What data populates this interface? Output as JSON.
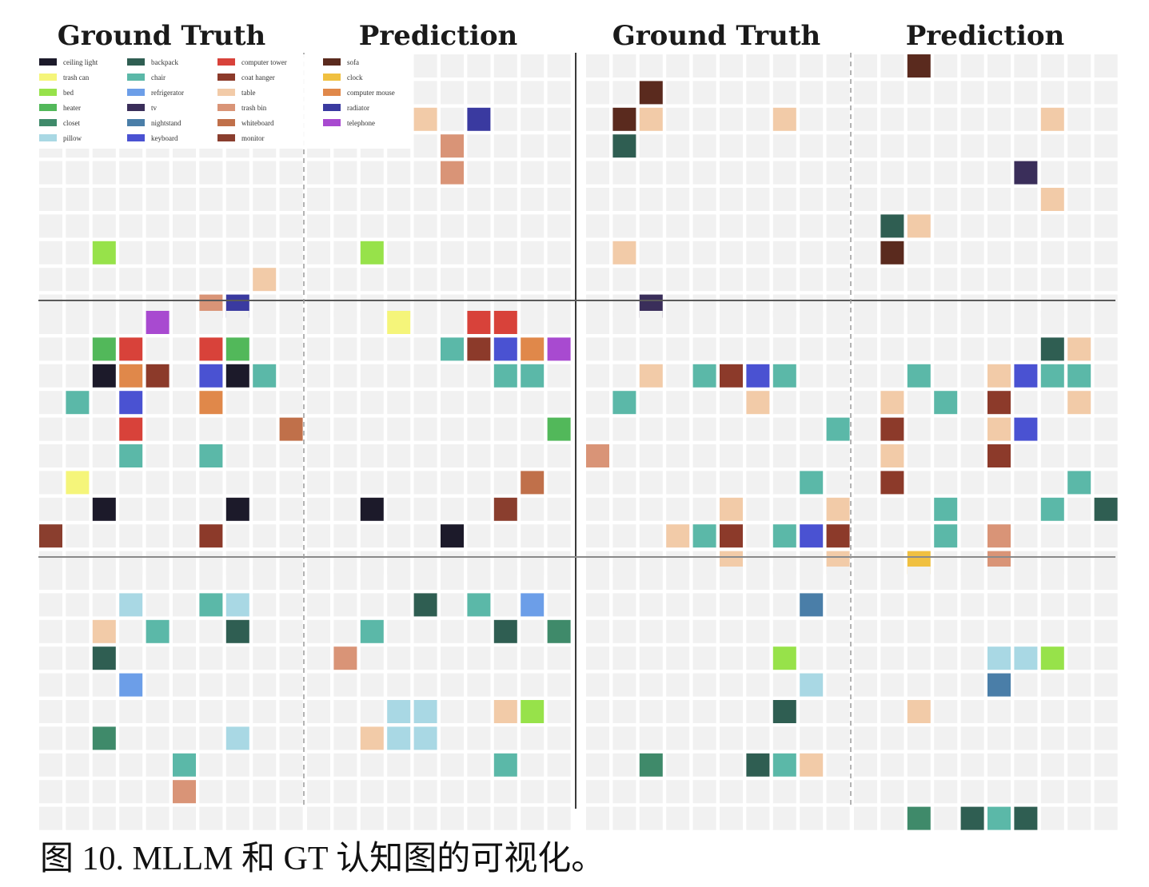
{
  "headers": [
    "Ground Truth",
    "Prediction",
    "Ground Truth",
    "Prediction"
  ],
  "caption": "图 10. MLLM 和 GT 认知图的可视化。",
  "legend": [
    {
      "label": "ceiling light",
      "color": "#1c1a2a"
    },
    {
      "label": "trash can",
      "color": "#f5f57a"
    },
    {
      "label": "bed",
      "color": "#97e24a"
    },
    {
      "label": "heater",
      "color": "#52b85a"
    },
    {
      "label": "closet",
      "color": "#3f8a6a"
    },
    {
      "label": "pillow",
      "color": "#a9d8e4"
    },
    {
      "label": "backpack",
      "color": "#2f5e52"
    },
    {
      "label": "chair",
      "color": "#5bb8a8"
    },
    {
      "label": "refrigerator",
      "color": "#6c9ee8"
    },
    {
      "label": "tv",
      "color": "#3a2e5a"
    },
    {
      "label": "nightstand",
      "color": "#4a7ea8"
    },
    {
      "label": "keyboard",
      "color": "#4a52d2"
    },
    {
      "label": "computer tower",
      "color": "#d8423a"
    },
    {
      "label": "coat hanger",
      "color": "#8c3a2a"
    },
    {
      "label": "table",
      "color": "#f2cba8"
    },
    {
      "label": "trash bin",
      "color": "#d99477"
    },
    {
      "label": "whiteboard",
      "color": "#c0704a"
    },
    {
      "label": "monitor",
      "color": "#8a3e2e"
    },
    {
      "label": "sofa",
      "color": "#5a2a1e"
    },
    {
      "label": "clock",
      "color": "#f0c040"
    },
    {
      "label": "computer mouse",
      "color": "#e0884a"
    },
    {
      "label": "radiator",
      "color": "#3a3aa0"
    },
    {
      "label": "telephone",
      "color": "#a84ad0"
    }
  ],
  "colors": {
    "cl": "#1c1a2a",
    "tc": "#f5f57a",
    "bed": "#97e24a",
    "ht": "#52b85a",
    "clo": "#3f8a6a",
    "pil": "#a9d8e4",
    "bp": "#2f5e52",
    "ch": "#5bb8a8",
    "ref": "#6c9ee8",
    "tv": "#3a2e5a",
    "ns": "#4a7ea8",
    "kb": "#4a52d2",
    "ct": "#d8423a",
    "chg": "#8c3a2a",
    "tb": "#f2cba8",
    "tbin": "#d99477",
    "wb": "#c0704a",
    "mon": "#8a3e2e",
    "sofa": "#5a2a1e",
    "clk": "#f0c040",
    "cm": "#e0884a",
    "rad": "#3a3aa0",
    "tel": "#a84ad0",
    "cell": "#f1f1f1",
    "page": "#ffffff"
  },
  "maps": [
    {
      "name": "r1-gt-a",
      "cells": [
        [
          7,
          2,
          "bed"
        ],
        [
          8,
          8,
          "tb"
        ],
        [
          9,
          6,
          "tbin"
        ],
        [
          9,
          7,
          "rad"
        ]
      ]
    },
    {
      "name": "r1-pred-a",
      "cells": [
        [
          2,
          4,
          "tb"
        ],
        [
          2,
          6,
          "rad"
        ],
        [
          3,
          5,
          "tbin"
        ],
        [
          4,
          5,
          "tbin"
        ],
        [
          7,
          2,
          "bed"
        ]
      ]
    },
    {
      "name": "r1-gt-b",
      "cells": [
        [
          1,
          2,
          "sofa"
        ],
        [
          2,
          1,
          "sofa"
        ],
        [
          2,
          2,
          "tb"
        ],
        [
          2,
          7,
          "tb"
        ],
        [
          3,
          1,
          "bp"
        ],
        [
          7,
          1,
          "tb"
        ],
        [
          9,
          2,
          "tv"
        ]
      ]
    },
    {
      "name": "r1-pred-b",
      "cells": [
        [
          0,
          2,
          "sofa"
        ],
        [
          2,
          7,
          "tb"
        ],
        [
          4,
          6,
          "tv"
        ],
        [
          5,
          7,
          "tb"
        ],
        [
          6,
          1,
          "bp"
        ],
        [
          6,
          2,
          "tb"
        ],
        [
          7,
          1,
          "sofa"
        ]
      ]
    },
    {
      "name": "r2-gt-a",
      "cells": [
        [
          0,
          4,
          "tel"
        ],
        [
          1,
          2,
          "ht"
        ],
        [
          1,
          3,
          "ct"
        ],
        [
          1,
          6,
          "ct"
        ],
        [
          1,
          7,
          "ht"
        ],
        [
          2,
          2,
          "cl"
        ],
        [
          2,
          3,
          "cm"
        ],
        [
          2,
          4,
          "chg"
        ],
        [
          2,
          6,
          "kb"
        ],
        [
          2,
          7,
          "cl"
        ],
        [
          2,
          8,
          "ch"
        ],
        [
          3,
          1,
          "ch"
        ],
        [
          3,
          3,
          "kb"
        ],
        [
          3,
          6,
          "cm"
        ],
        [
          4,
          3,
          "ct"
        ],
        [
          4,
          9,
          "wb"
        ],
        [
          5,
          3,
          "ch"
        ],
        [
          5,
          6,
          "ch"
        ],
        [
          6,
          1,
          "tc"
        ],
        [
          7,
          2,
          "cl"
        ],
        [
          7,
          7,
          "cl"
        ],
        [
          8,
          0,
          "mon"
        ],
        [
          8,
          6,
          "chg"
        ]
      ]
    },
    {
      "name": "r2-pred-a",
      "cells": [
        [
          0,
          3,
          "tc"
        ],
        [
          0,
          6,
          "ct"
        ],
        [
          0,
          7,
          "ct"
        ],
        [
          1,
          5,
          "ch"
        ],
        [
          1,
          6,
          "chg"
        ],
        [
          1,
          7,
          "kb"
        ],
        [
          1,
          8,
          "cm"
        ],
        [
          1,
          9,
          "tel"
        ],
        [
          2,
          7,
          "ch"
        ],
        [
          2,
          8,
          "ch"
        ],
        [
          4,
          9,
          "ht"
        ],
        [
          6,
          8,
          "wb"
        ],
        [
          7,
          2,
          "cl"
        ],
        [
          7,
          7,
          "mon"
        ],
        [
          8,
          5,
          "cl"
        ]
      ]
    },
    {
      "name": "r2-gt-b",
      "cells": [
        [
          2,
          2,
          "tb"
        ],
        [
          2,
          4,
          "ch"
        ],
        [
          2,
          5,
          "chg"
        ],
        [
          2,
          6,
          "kb"
        ],
        [
          2,
          7,
          "ch"
        ],
        [
          3,
          1,
          "ch"
        ],
        [
          3,
          6,
          "tb"
        ],
        [
          4,
          9,
          "ch"
        ],
        [
          5,
          0,
          "tbin"
        ],
        [
          6,
          8,
          "ch"
        ],
        [
          7,
          5,
          "tb"
        ],
        [
          7,
          9,
          "tb"
        ],
        [
          8,
          3,
          "tb"
        ],
        [
          8,
          4,
          "ch"
        ],
        [
          8,
          5,
          "chg"
        ],
        [
          8,
          7,
          "ch"
        ],
        [
          8,
          8,
          "kb"
        ],
        [
          8,
          9,
          "chg"
        ],
        [
          9,
          5,
          "tb"
        ],
        [
          9,
          9,
          "tb"
        ]
      ]
    },
    {
      "name": "r2-pred-b",
      "cells": [
        [
          1,
          7,
          "bp"
        ],
        [
          1,
          8,
          "tb"
        ],
        [
          2,
          2,
          "ch"
        ],
        [
          2,
          5,
          "tb"
        ],
        [
          2,
          6,
          "kb"
        ],
        [
          2,
          7,
          "ch"
        ],
        [
          2,
          8,
          "ch"
        ],
        [
          3,
          1,
          "tb"
        ],
        [
          3,
          3,
          "ch"
        ],
        [
          3,
          5,
          "chg"
        ],
        [
          3,
          8,
          "tb"
        ],
        [
          4,
          1,
          "chg"
        ],
        [
          4,
          5,
          "tb"
        ],
        [
          4,
          6,
          "kb"
        ],
        [
          5,
          1,
          "tb"
        ],
        [
          5,
          5,
          "chg"
        ],
        [
          6,
          1,
          "chg"
        ],
        [
          6,
          8,
          "ch"
        ],
        [
          7,
          3,
          "ch"
        ],
        [
          7,
          7,
          "ch"
        ],
        [
          7,
          9,
          "bp"
        ],
        [
          8,
          3,
          "ch"
        ],
        [
          8,
          5,
          "tbin"
        ],
        [
          9,
          2,
          "clk"
        ],
        [
          9,
          5,
          "tbin"
        ]
      ]
    },
    {
      "name": "r3-gt-a",
      "cells": [
        [
          1,
          3,
          "pil"
        ],
        [
          1,
          6,
          "ch"
        ],
        [
          1,
          7,
          "pil"
        ],
        [
          2,
          2,
          "tb"
        ],
        [
          2,
          4,
          "ch"
        ],
        [
          2,
          7,
          "bp"
        ],
        [
          3,
          2,
          "bp"
        ],
        [
          4,
          3,
          "ref"
        ],
        [
          6,
          2,
          "clo"
        ],
        [
          6,
          7,
          "pil"
        ],
        [
          7,
          5,
          "ch"
        ],
        [
          8,
          5,
          "tbin"
        ]
      ]
    },
    {
      "name": "r3-pred-a",
      "cells": [
        [
          1,
          4,
          "bp"
        ],
        [
          1,
          6,
          "ch"
        ],
        [
          1,
          8,
          "ref"
        ],
        [
          2,
          2,
          "ch"
        ],
        [
          2,
          7,
          "bp"
        ],
        [
          2,
          9,
          "clo"
        ],
        [
          3,
          1,
          "tbin"
        ],
        [
          5,
          3,
          "pil"
        ],
        [
          5,
          4,
          "pil"
        ],
        [
          5,
          7,
          "tb"
        ],
        [
          5,
          8,
          "bed"
        ],
        [
          6,
          2,
          "tb"
        ],
        [
          6,
          3,
          "pil"
        ],
        [
          6,
          4,
          "pil"
        ],
        [
          7,
          7,
          "ch"
        ]
      ]
    },
    {
      "name": "r3-gt-b",
      "cells": [
        [
          1,
          8,
          "ns"
        ],
        [
          3,
          7,
          "bed"
        ],
        [
          4,
          8,
          "pil"
        ],
        [
          5,
          7,
          "bp"
        ],
        [
          7,
          2,
          "clo"
        ],
        [
          7,
          6,
          "bp"
        ],
        [
          7,
          7,
          "ch"
        ],
        [
          7,
          8,
          "tb"
        ]
      ]
    },
    {
      "name": "r3-pred-b",
      "cells": [
        [
          3,
          5,
          "pil"
        ],
        [
          3,
          6,
          "pil"
        ],
        [
          3,
          7,
          "bed"
        ],
        [
          4,
          5,
          "ns"
        ],
        [
          5,
          2,
          "tb"
        ],
        [
          9,
          2,
          "clo"
        ],
        [
          9,
          4,
          "bp"
        ],
        [
          9,
          5,
          "ch"
        ],
        [
          9,
          6,
          "bp"
        ]
      ]
    }
  ]
}
